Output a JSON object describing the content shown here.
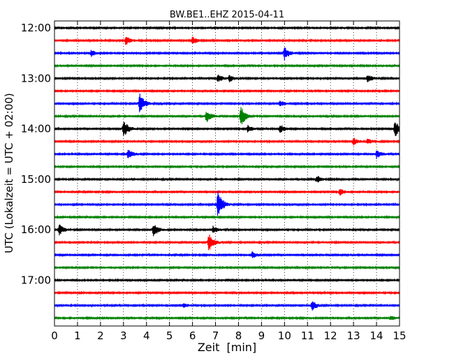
{
  "chart_data": {
    "type": "line",
    "subtype": "seismogram-helicorder",
    "title": "BW.BE1..EHZ 2015-04-11",
    "xlabel": "Zeit  [min]",
    "ylabel": "UTC (Lokalzeit = UTC + 02:00)",
    "xlim": [
      0,
      15
    ],
    "x_ticks": [
      "0",
      "1",
      "2",
      "3",
      "4",
      "5",
      "6",
      "7",
      "8",
      "9",
      "10",
      "11",
      "12",
      "13",
      "14",
      "15"
    ],
    "y_tick_labels": [
      "12:00",
      "13:00",
      "14:00",
      "15:00",
      "16:00",
      "17:00"
    ],
    "grid": "vertical dotted",
    "colors": [
      "#000000",
      "#ff0000",
      "#0000ff",
      "#008000"
    ],
    "traces": [
      {
        "start": "12:00",
        "events": []
      },
      {
        "start": "12:15",
        "events": [
          {
            "t": 3.1,
            "amp": 0.35
          },
          {
            "t": 6.0,
            "amp": 0.3
          }
        ]
      },
      {
        "start": "12:30",
        "events": [
          {
            "t": 1.6,
            "amp": 0.25
          },
          {
            "t": 10.0,
            "amp": 0.55
          }
        ]
      },
      {
        "start": "12:45",
        "events": []
      },
      {
        "start": "13:00",
        "events": [
          {
            "t": 7.1,
            "amp": 0.35
          },
          {
            "t": 7.6,
            "amp": 0.25
          },
          {
            "t": 13.6,
            "amp": 0.35
          }
        ]
      },
      {
        "start": "13:15",
        "events": []
      },
      {
        "start": "13:30",
        "events": [
          {
            "t": 3.7,
            "amp": 0.85
          },
          {
            "t": 9.8,
            "amp": 0.25
          }
        ]
      },
      {
        "start": "13:45",
        "events": [
          {
            "t": 6.6,
            "amp": 0.5
          },
          {
            "t": 8.1,
            "amp": 0.85
          }
        ]
      },
      {
        "start": "14:00",
        "events": [
          {
            "t": 3.0,
            "amp": 0.75
          },
          {
            "t": 8.4,
            "amp": 0.3
          },
          {
            "t": 9.8,
            "amp": 0.35
          },
          {
            "t": 14.8,
            "amp": 0.7
          }
        ]
      },
      {
        "start": "14:15",
        "events": [
          {
            "t": 13.0,
            "amp": 0.3
          },
          {
            "t": 13.6,
            "amp": 0.25
          }
        ]
      },
      {
        "start": "14:30",
        "events": [
          {
            "t": 3.2,
            "amp": 0.4
          },
          {
            "t": 14.0,
            "amp": 0.35
          }
        ]
      },
      {
        "start": "14:45",
        "events": []
      },
      {
        "start": "15:00",
        "events": [
          {
            "t": 11.4,
            "amp": 0.3
          }
        ]
      },
      {
        "start": "15:15",
        "events": [
          {
            "t": 12.4,
            "amp": 0.3
          }
        ]
      },
      {
        "start": "15:30",
        "events": [
          {
            "t": 7.1,
            "amp": 1.15
          }
        ]
      },
      {
        "start": "15:45",
        "events": []
      },
      {
        "start": "16:00",
        "events": [
          {
            "t": 0.2,
            "amp": 0.45
          },
          {
            "t": 4.3,
            "amp": 0.55
          },
          {
            "t": 6.9,
            "amp": 0.3
          }
        ]
      },
      {
        "start": "16:15",
        "events": [
          {
            "t": 6.7,
            "amp": 0.75
          }
        ]
      },
      {
        "start": "16:30",
        "events": [
          {
            "t": 8.6,
            "amp": 0.25
          }
        ]
      },
      {
        "start": "16:45",
        "events": []
      },
      {
        "start": "17:00",
        "events": []
      },
      {
        "start": "17:15",
        "events": []
      },
      {
        "start": "17:30",
        "events": [
          {
            "t": 5.6,
            "amp": 0.2
          },
          {
            "t": 11.2,
            "amp": 0.4
          }
        ]
      },
      {
        "start": "17:45",
        "events": [
          {
            "t": 14.6,
            "amp": 0.2
          }
        ]
      }
    ]
  }
}
